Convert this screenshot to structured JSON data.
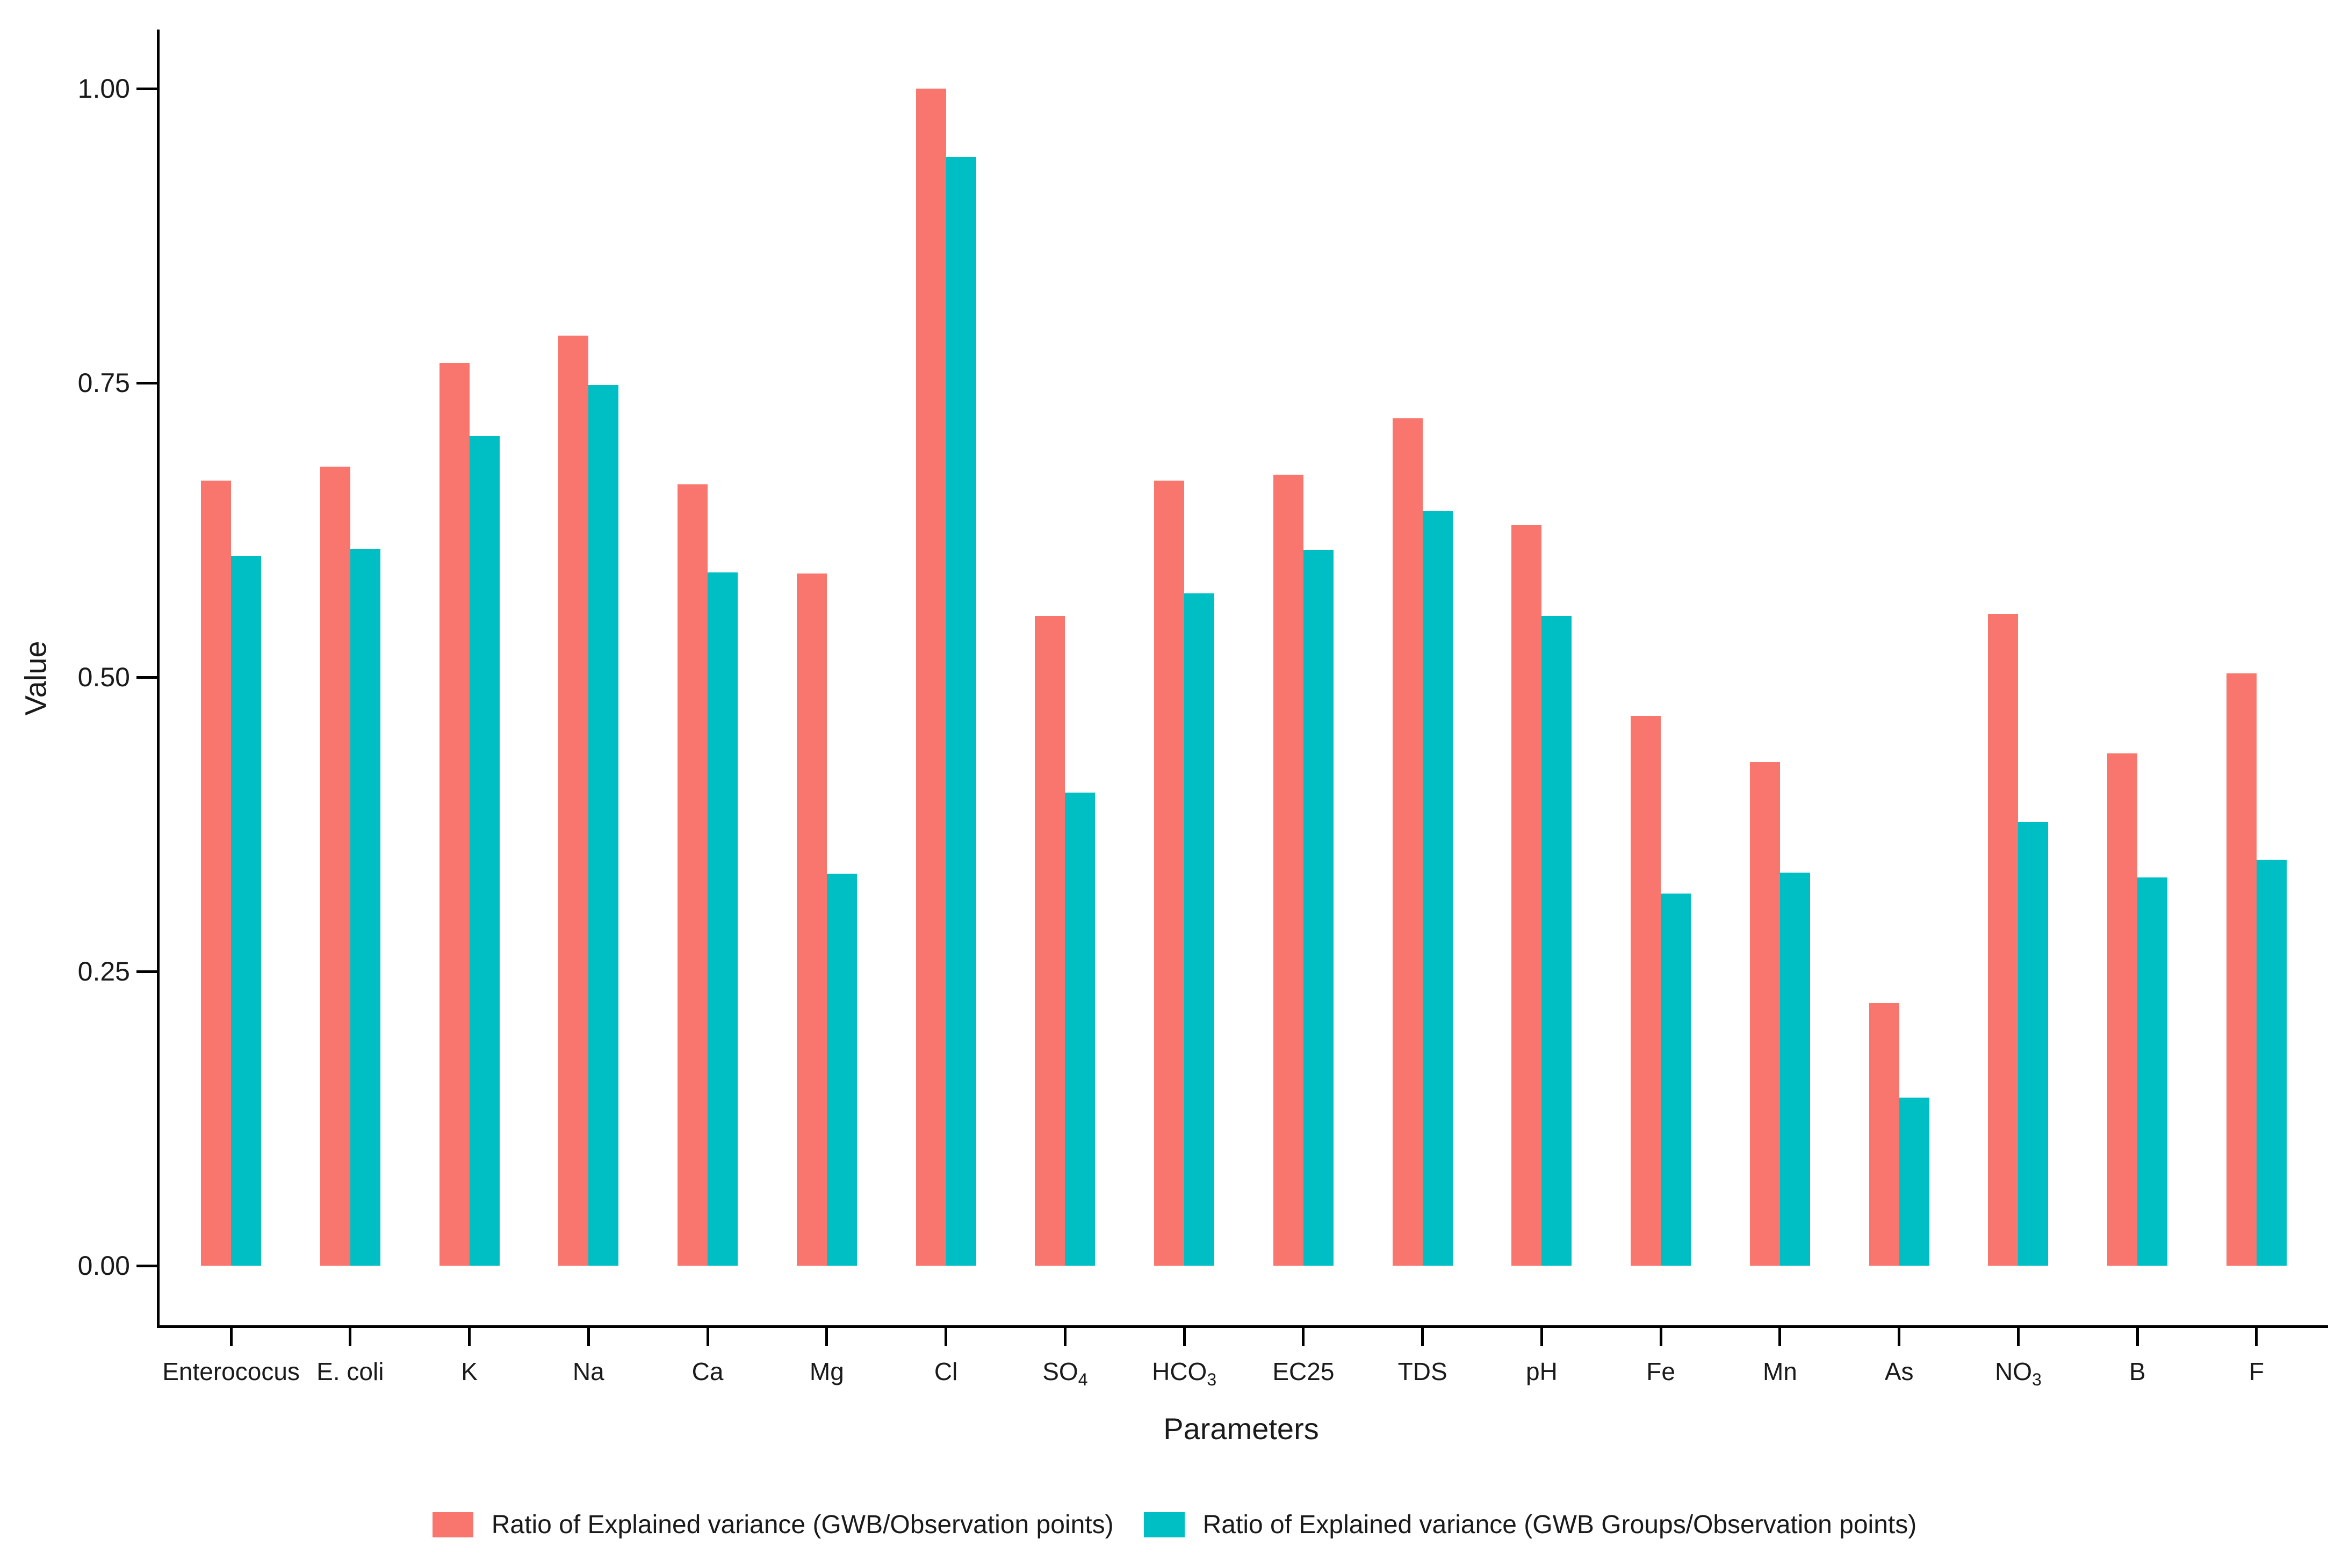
{
  "chart_data": {
    "type": "bar",
    "title": "",
    "xlabel": "Parameters",
    "ylabel": "Value",
    "ylim": [
      0,
      1.05
    ],
    "grid": false,
    "legend_position": "bottom-center",
    "axis_color": "#000000",
    "text_color": "#1a1a1a",
    "yticks": [
      {
        "value": 0.0,
        "label": "0.00"
      },
      {
        "value": 0.25,
        "label": "0.25"
      },
      {
        "value": 0.5,
        "label": "0.50"
      },
      {
        "value": 0.75,
        "label": "0.75"
      },
      {
        "value": 1.0,
        "label": "1.00"
      }
    ],
    "categories": [
      {
        "text": "Enterococus",
        "sub": ""
      },
      {
        "text": "E. coli",
        "sub": ""
      },
      {
        "text": "K",
        "sub": ""
      },
      {
        "text": "Na",
        "sub": ""
      },
      {
        "text": "Ca",
        "sub": ""
      },
      {
        "text": "Mg",
        "sub": ""
      },
      {
        "text": "Cl",
        "sub": ""
      },
      {
        "text": "SO",
        "sub": "4"
      },
      {
        "text": "HCO",
        "sub": "3"
      },
      {
        "text": "EC25",
        "sub": ""
      },
      {
        "text": "TDS",
        "sub": ""
      },
      {
        "text": "pH",
        "sub": ""
      },
      {
        "text": "Fe",
        "sub": ""
      },
      {
        "text": "Mn",
        "sub": ""
      },
      {
        "text": "As",
        "sub": ""
      },
      {
        "text": "NO",
        "sub": "3"
      },
      {
        "text": "B",
        "sub": ""
      },
      {
        "text": "F",
        "sub": ""
      }
    ],
    "series": [
      {
        "name": "Ratio of Explained variance (GWB/Observation points)",
        "color": "#F8766D",
        "values": [
          0.667,
          0.679,
          0.767,
          0.79,
          0.664,
          0.588,
          1.0,
          0.552,
          0.667,
          0.672,
          0.72,
          0.629,
          0.467,
          0.428,
          0.223,
          0.554,
          0.435,
          0.503
        ]
      },
      {
        "name": "Ratio of Explained variance (GWB Groups/Observation points)",
        "color": "#00BFC4",
        "values": [
          0.603,
          0.609,
          0.705,
          0.748,
          0.589,
          0.333,
          0.942,
          0.402,
          0.571,
          0.608,
          0.641,
          0.552,
          0.316,
          0.334,
          0.143,
          0.377,
          0.33,
          0.345
        ]
      }
    ]
  }
}
